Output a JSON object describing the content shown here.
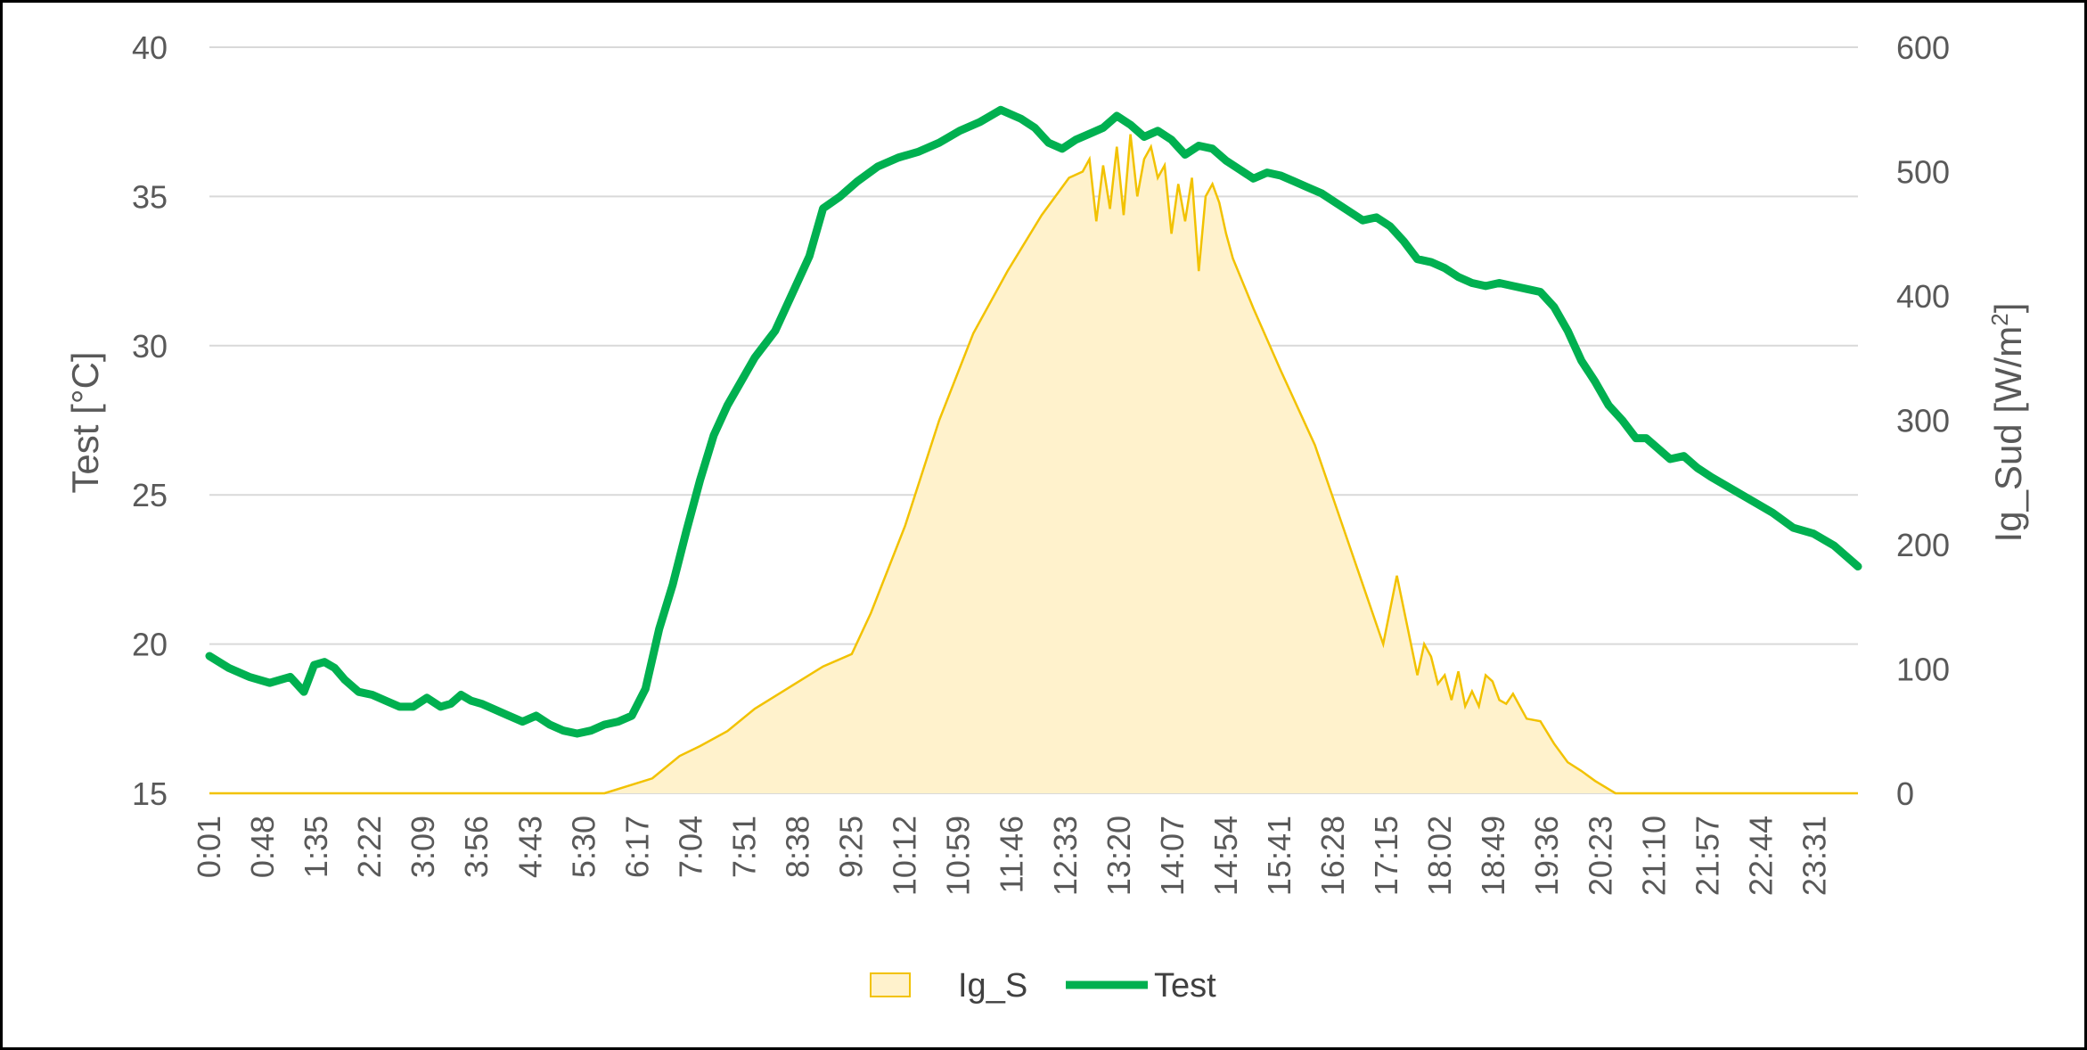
{
  "chart_data": {
    "type": "line",
    "title": "",
    "grid": true,
    "legend_position": "bottom",
    "colors": {
      "area_fill": "#FFF2CC",
      "area_line": "#F2C200",
      "line": "#00B050",
      "grid": "#D9D9D9",
      "text": "#595959"
    },
    "x_tick_labels": [
      "0:01",
      "0:48",
      "1:35",
      "2:22",
      "3:09",
      "3:56",
      "4:43",
      "5:30",
      "6:17",
      "7:04",
      "7:51",
      "8:38",
      "9:25",
      "10:12",
      "10:59",
      "11:46",
      "12:33",
      "13:20",
      "14:07",
      "14:54",
      "15:41",
      "16:28",
      "17:15",
      "18:02",
      "18:49",
      "19:36",
      "20:23",
      "21:10",
      "21:57",
      "22:44",
      "23:31"
    ],
    "x_range_hours": [
      0.0167,
      24.15
    ],
    "y_left": {
      "label": "Test [°C]",
      "ticks": [
        "15",
        "20",
        "25",
        "30",
        "35",
        "40"
      ],
      "range": [
        15,
        40
      ]
    },
    "y_right": {
      "label": "Ig_Sud [W/m²]",
      "label_main": "Ig_Sud [W/m",
      "label_sup": "2",
      "label_end": "]",
      "ticks": [
        "0",
        "100",
        "200",
        "300",
        "400",
        "500",
        "600"
      ],
      "range": [
        0,
        600
      ]
    },
    "legend": [
      {
        "name": "Ig_S",
        "type": "area"
      },
      {
        "name": "Test",
        "type": "line"
      }
    ],
    "series": [
      {
        "name": "Ig_S",
        "axis": "right",
        "type": "area",
        "x_hours": [
          0.0,
          5.8,
          6.5,
          6.9,
          7.2,
          7.6,
          8.0,
          8.5,
          9.0,
          9.42,
          9.7,
          10.2,
          10.7,
          11.2,
          11.7,
          12.2,
          12.6,
          12.8,
          12.9,
          13.0,
          13.1,
          13.2,
          13.3,
          13.4,
          13.5,
          13.6,
          13.7,
          13.8,
          13.9,
          14.0,
          14.1,
          14.2,
          14.3,
          14.4,
          14.5,
          14.6,
          14.7,
          14.8,
          14.9,
          15.0,
          15.3,
          15.7,
          16.2,
          16.7,
          17.2,
          17.4,
          17.55,
          17.7,
          17.8,
          17.9,
          18.0,
          18.1,
          18.2,
          18.3,
          18.4,
          18.5,
          18.6,
          18.7,
          18.8,
          18.9,
          19.0,
          19.1,
          19.3,
          19.5,
          19.7,
          19.9,
          20.1,
          20.3,
          20.6,
          21.0,
          24.15
        ],
        "values": [
          0,
          0,
          12,
          30,
          38,
          50,
          68,
          85,
          102,
          112,
          145,
          215,
          300,
          370,
          420,
          465,
          495,
          500,
          510,
          460,
          505,
          470,
          520,
          465,
          530,
          480,
          510,
          520,
          495,
          505,
          450,
          490,
          460,
          495,
          420,
          480,
          490,
          475,
          450,
          430,
          390,
          340,
          280,
          200,
          120,
          175,
          135,
          95,
          120,
          110,
          88,
          95,
          75,
          98,
          70,
          82,
          70,
          95,
          90,
          75,
          72,
          80,
          60,
          58,
          40,
          25,
          18,
          10,
          0,
          0,
          0
        ]
      },
      {
        "name": "Test",
        "axis": "left",
        "type": "line",
        "x_hours": [
          0.0,
          0.3,
          0.6,
          0.9,
          1.2,
          1.4,
          1.55,
          1.7,
          1.85,
          2.0,
          2.2,
          2.4,
          2.6,
          2.8,
          3.0,
          3.2,
          3.4,
          3.55,
          3.7,
          3.85,
          4.0,
          4.2,
          4.4,
          4.6,
          4.8,
          5.0,
          5.2,
          5.4,
          5.6,
          5.8,
          6.0,
          6.2,
          6.4,
          6.6,
          6.8,
          7.0,
          7.2,
          7.4,
          7.6,
          7.8,
          8.0,
          8.3,
          8.6,
          8.8,
          9.0,
          9.25,
          9.5,
          9.8,
          10.1,
          10.4,
          10.7,
          11.0,
          11.3,
          11.6,
          11.9,
          12.1,
          12.3,
          12.5,
          12.7,
          12.9,
          13.1,
          13.3,
          13.5,
          13.7,
          13.9,
          14.1,
          14.3,
          14.5,
          14.7,
          14.9,
          15.1,
          15.3,
          15.5,
          15.7,
          15.9,
          16.1,
          16.3,
          16.5,
          16.7,
          16.9,
          17.1,
          17.3,
          17.5,
          17.7,
          17.9,
          18.1,
          18.3,
          18.5,
          18.7,
          18.9,
          19.1,
          19.3,
          19.5,
          19.7,
          19.9,
          20.1,
          20.3,
          20.5,
          20.7,
          20.9,
          21.05,
          21.2,
          21.4,
          21.6,
          21.8,
          22.0,
          22.3,
          22.6,
          22.9,
          23.2,
          23.5,
          23.8,
          24.0,
          24.15
        ],
        "values": [
          19.6,
          19.2,
          18.9,
          18.7,
          18.9,
          18.4,
          19.3,
          19.4,
          19.2,
          18.8,
          18.4,
          18.3,
          18.1,
          17.9,
          17.9,
          18.2,
          17.9,
          18.0,
          18.3,
          18.1,
          18.0,
          17.8,
          17.6,
          17.4,
          17.6,
          17.3,
          17.1,
          17.0,
          17.1,
          17.3,
          17.4,
          17.6,
          18.5,
          20.5,
          22.0,
          23.8,
          25.5,
          27.0,
          28.0,
          28.8,
          29.6,
          30.5,
          32.0,
          33.0,
          34.6,
          35.0,
          35.5,
          36.0,
          36.3,
          36.5,
          36.8,
          37.2,
          37.5,
          37.9,
          37.6,
          37.3,
          36.8,
          36.6,
          36.9,
          37.1,
          37.3,
          37.7,
          37.4,
          37.0,
          37.2,
          36.9,
          36.4,
          36.7,
          36.6,
          36.2,
          35.9,
          35.6,
          35.8,
          35.7,
          35.5,
          35.3,
          35.1,
          34.8,
          34.5,
          34.2,
          34.3,
          34.0,
          33.5,
          32.9,
          32.8,
          32.6,
          32.3,
          32.1,
          32.0,
          32.1,
          32.0,
          31.9,
          31.8,
          31.3,
          30.5,
          29.5,
          28.8,
          28.0,
          27.5,
          26.9,
          26.9,
          26.6,
          26.2,
          26.3,
          25.9,
          25.6,
          25.2,
          24.8,
          24.4,
          23.9,
          23.7,
          23.3,
          22.9,
          22.6
        ]
      }
    ]
  }
}
